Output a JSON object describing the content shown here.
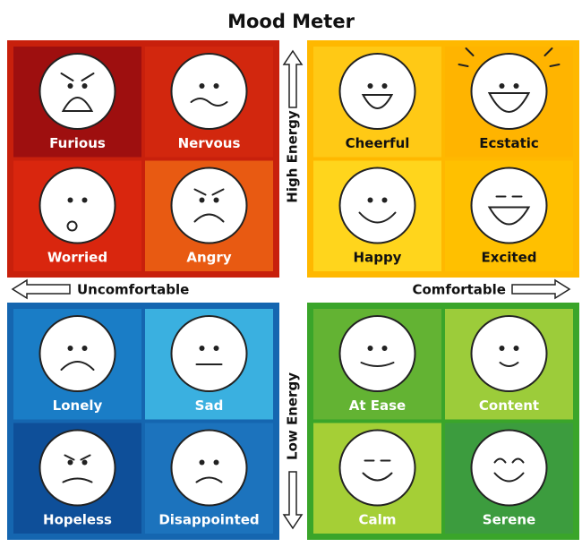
{
  "title": "Mood Meter",
  "axes": {
    "high": "High Energy",
    "low": "Low Energy",
    "left": "Uncomfortable",
    "right": "Comfortable"
  },
  "quadrants": [
    [
      "Furious",
      "Nervous",
      "Worried",
      "Angry"
    ],
    [
      "Cheerful",
      "Ecstatic",
      "Happy",
      "Excited"
    ],
    [
      "Lonely",
      "Sad",
      "Hopeless",
      "Disappointed"
    ],
    [
      "At Ease",
      "Content",
      "Calm",
      "Serene"
    ]
  ]
}
